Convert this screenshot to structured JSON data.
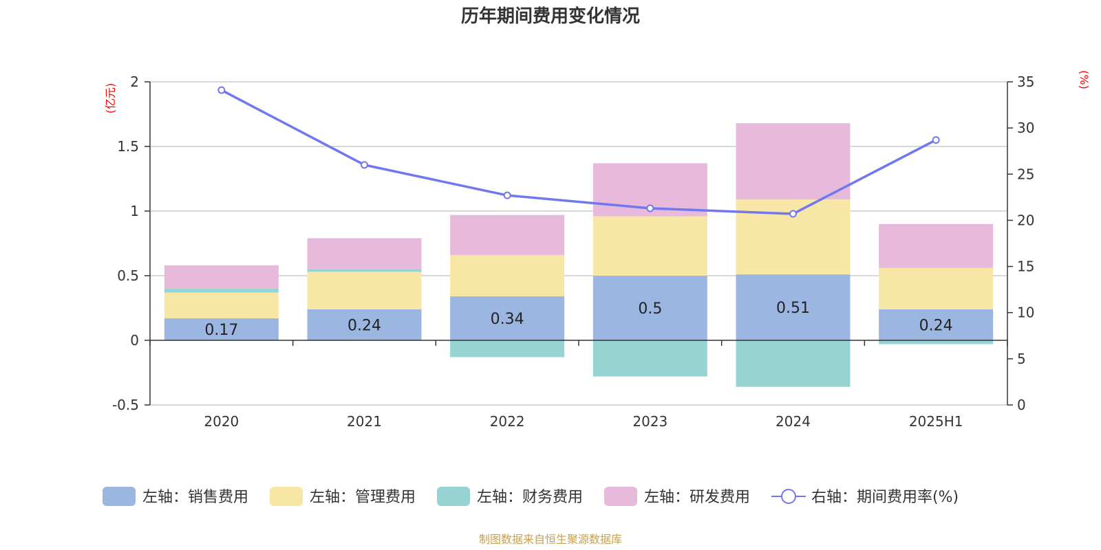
{
  "chart_data": {
    "type": "bar",
    "title": "历年期间费用变化情况",
    "categories": [
      "2020",
      "2021",
      "2022",
      "2023",
      "2024",
      "2025H1"
    ],
    "left_axis": {
      "unit": "(亿元)",
      "ylim": [
        -0.5,
        2
      ],
      "ticks": [
        "2",
        "1.5",
        "1",
        "0.5",
        "0",
        "-0.5"
      ]
    },
    "right_axis": {
      "unit": "(%)",
      "ylim": [
        0,
        35
      ],
      "ticks": [
        "35",
        "30",
        "25",
        "20",
        "15",
        "10",
        "5",
        "0"
      ]
    },
    "series": [
      {
        "name": "左轴：销售费用",
        "color": "#9bb6e0",
        "values": [
          0.17,
          0.24,
          0.34,
          0.5,
          0.51,
          0.24
        ],
        "data_labels": [
          "0.17",
          "0.24",
          "0.34",
          "0.5",
          "0.51",
          "0.24"
        ]
      },
      {
        "name": "左轴：管理费用",
        "color": "#f7e6a6",
        "values": [
          0.2,
          0.29,
          0.32,
          0.46,
          0.58,
          0.32
        ]
      },
      {
        "name": "左轴：财务费用",
        "color": "#98d3d4",
        "values": [
          0.03,
          0.02,
          -0.13,
          -0.28,
          -0.36,
          -0.03
        ]
      },
      {
        "name": "左轴：研发费用",
        "color": "#e7b9da",
        "values": [
          0.18,
          0.24,
          0.31,
          0.41,
          0.59,
          0.34
        ]
      },
      {
        "name": "右轴：期间费用率(%)",
        "type": "line",
        "axis": "right",
        "color": "#7177ef",
        "values": [
          34.1,
          26.0,
          22.7,
          21.3,
          20.7,
          28.7
        ]
      }
    ],
    "grid": true,
    "legend_position": "bottom"
  },
  "source": "制图数据来自恒生聚源数据库"
}
